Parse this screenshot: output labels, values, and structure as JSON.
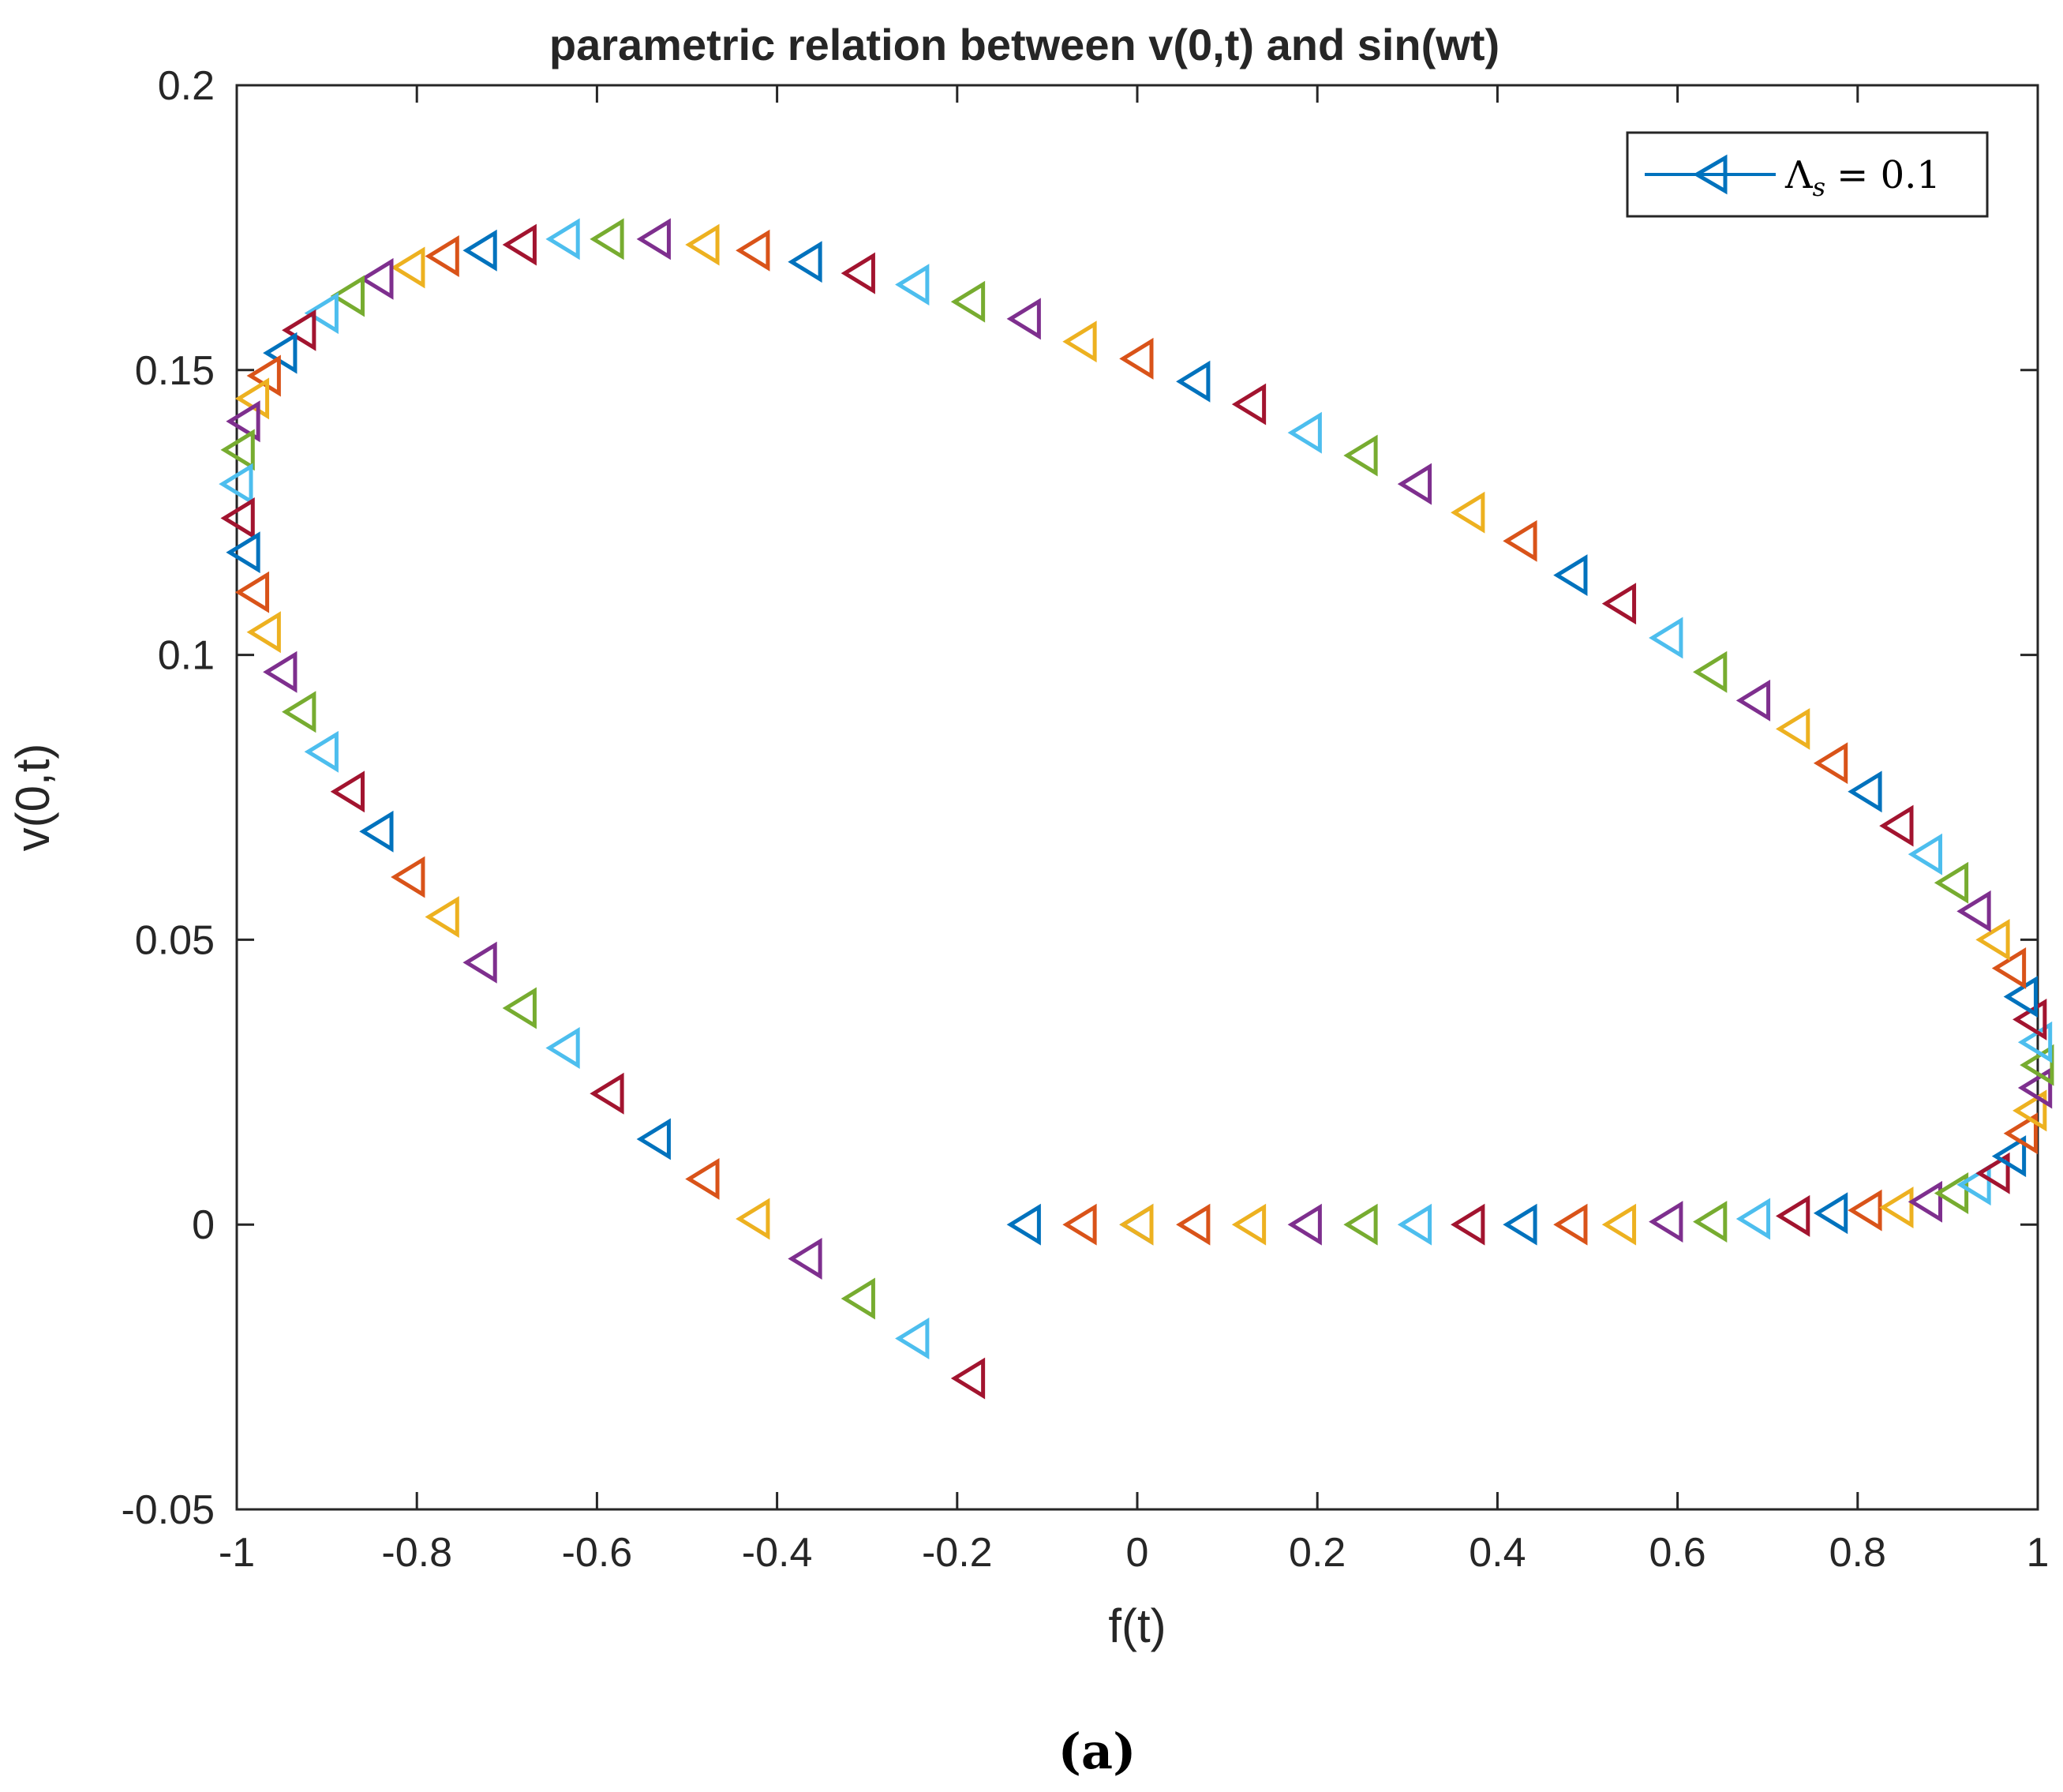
{
  "chart_data": {
    "type": "scatter",
    "title": "parametric relation between v(0,t) and sin(wt)",
    "xlabel": "f(t)",
    "ylabel": "v(0,t)",
    "xlim": [
      -1,
      1
    ],
    "ylim": [
      -0.05,
      0.2
    ],
    "xticks": [
      "-1",
      "-0.8",
      "-0.6",
      "-0.4",
      "-0.2",
      "0",
      "0.2",
      "0.4",
      "0.6",
      "0.8",
      "1"
    ],
    "yticks": [
      "-0.05",
      "0",
      "0.05",
      "0.1",
      "0.15",
      "0.2"
    ],
    "legend": {
      "label": "Λ",
      "subscript": "s",
      "value": "= 0.1",
      "position": "top-right"
    },
    "marker": "left-triangle",
    "caption": "(a)",
    "color_cycle": [
      "#0072BD",
      "#D95319",
      "#EDB120",
      "#7E2F8E",
      "#77AC30",
      "#4DBEEE",
      "#A2142F"
    ],
    "series": [
      {
        "name": "Λs = 0.1",
        "x": [
          0.0,
          0.063,
          0.125,
          0.187,
          0.249,
          0.309,
          0.368,
          0.426,
          0.482,
          0.536,
          0.588,
          0.637,
          0.685,
          0.729,
          0.771,
          0.809,
          0.844,
          0.876,
          0.905,
          0.93,
          0.951,
          0.969,
          0.982,
          0.992,
          0.998,
          1.0,
          0.998,
          0.992,
          0.982,
          0.969,
          0.951,
          0.93,
          0.905,
          0.876,
          0.844,
          0.809,
          0.771,
          0.729,
          0.685,
          0.637,
          0.588,
          0.536,
          0.482,
          0.426,
          0.368,
          0.309,
          0.249,
          0.187,
          0.125,
          0.063,
          0.0,
          -0.063,
          -0.125,
          -0.187,
          -0.249,
          -0.309,
          -0.368,
          -0.426,
          -0.482,
          -0.536,
          -0.588,
          -0.637,
          -0.685,
          -0.729,
          -0.771,
          -0.809,
          -0.844,
          -0.876,
          -0.905,
          -0.93,
          -0.951,
          -0.969,
          -0.982,
          -0.992,
          -0.998,
          -1.0,
          -0.998,
          -0.992,
          -0.982,
          -0.969,
          -0.951,
          -0.93,
          -0.905,
          -0.876,
          -0.844,
          -0.809,
          -0.771,
          -0.729,
          -0.685,
          -0.637,
          -0.588,
          -0.536,
          -0.482,
          -0.426,
          -0.368,
          -0.309,
          -0.249,
          -0.187,
          -0.125,
          -0.063,
          0.0
        ],
        "y": [
          0.0,
          0.0,
          0.0,
          0.0,
          0.0,
          0.0,
          0.0,
          0.0,
          0.0,
          0.0,
          0.0005,
          0.0005,
          0.001,
          0.0015,
          0.002,
          0.0025,
          0.003,
          0.004,
          0.0055,
          0.007,
          0.009,
          0.012,
          0.016,
          0.02,
          0.024,
          0.028,
          0.032,
          0.036,
          0.04,
          0.045,
          0.05,
          0.055,
          0.06,
          0.065,
          0.07,
          0.076,
          0.081,
          0.087,
          0.092,
          0.097,
          0.103,
          0.109,
          0.114,
          0.12,
          0.125,
          0.13,
          0.135,
          0.139,
          0.144,
          0.148,
          0.152,
          0.155,
          0.159,
          0.162,
          0.165,
          0.167,
          0.169,
          0.171,
          0.172,
          0.173,
          0.173,
          0.173,
          0.172,
          0.171,
          0.17,
          0.168,
          0.166,
          0.163,
          0.16,
          0.157,
          0.153,
          0.149,
          0.145,
          0.141,
          0.136,
          0.13,
          0.124,
          0.118,
          0.111,
          0.104,
          0.097,
          0.09,
          0.083,
          0.076,
          0.069,
          0.061,
          0.054,
          0.046,
          0.038,
          0.031,
          0.023,
          0.015,
          0.008,
          0.001,
          -0.006,
          -0.013,
          -0.02,
          -0.027,
          0.0,
          0.0,
          0.0
        ]
      }
    ]
  }
}
